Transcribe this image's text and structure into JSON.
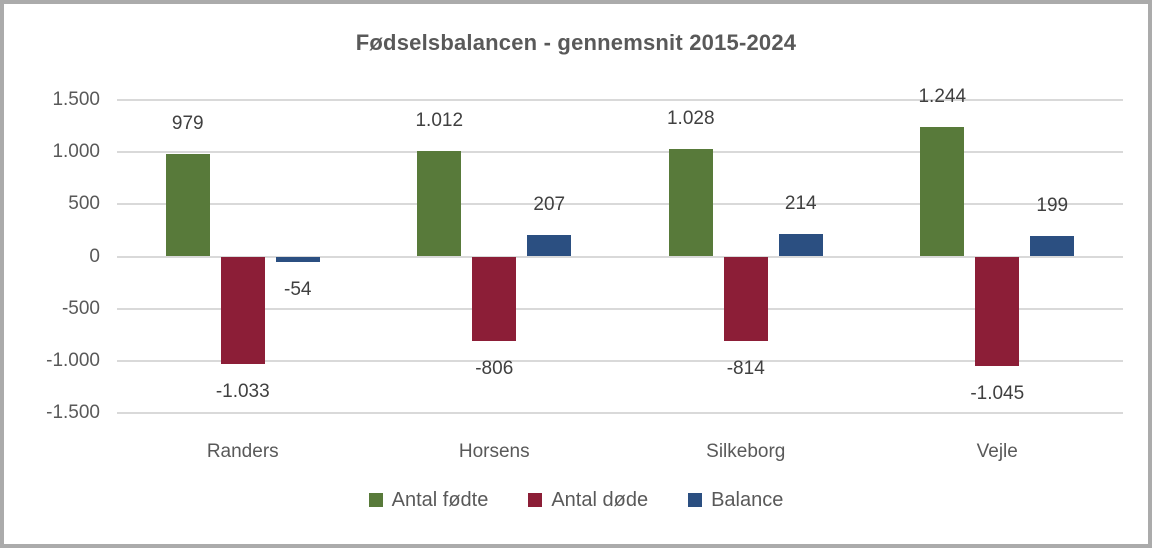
{
  "frame": {
    "border_color": "#ababab",
    "background": "#ffffff"
  },
  "chart_data": {
    "type": "bar",
    "title": "Fødselsbalancen - gennemsnit 2015-2024",
    "categories": [
      "Randers",
      "Horsens",
      "Silkeborg",
      "Vejle"
    ],
    "series": [
      {
        "name": "Antal fødte",
        "color": "#587a3a",
        "values": [
          979,
          1012,
          1028,
          1244
        ],
        "labels": [
          "979",
          "1.012",
          "1.028",
          "1.244"
        ]
      },
      {
        "name": "Antal døde",
        "color": "#8c1e37",
        "values": [
          -1033,
          -806,
          -814,
          -1045
        ],
        "labels": [
          "-1.033",
          "-806",
          "-814",
          "-1.045"
        ]
      },
      {
        "name": "Balance",
        "color": "#2b4f81",
        "values": [
          -54,
          207,
          214,
          199
        ],
        "labels": [
          "-54",
          "207",
          "214",
          "199"
        ]
      }
    ],
    "y_axis": {
      "min": -1500,
      "max": 1500,
      "step": 500,
      "tick_labels": [
        "1.500",
        "1.000",
        "500",
        "0",
        "-500",
        "-1.000",
        "-1.500"
      ]
    },
    "grid": true,
    "gridline_color": "#d9d9d9",
    "legend_position": "bottom",
    "axis_text_color": "#595959",
    "data_label_color": "#404040"
  }
}
